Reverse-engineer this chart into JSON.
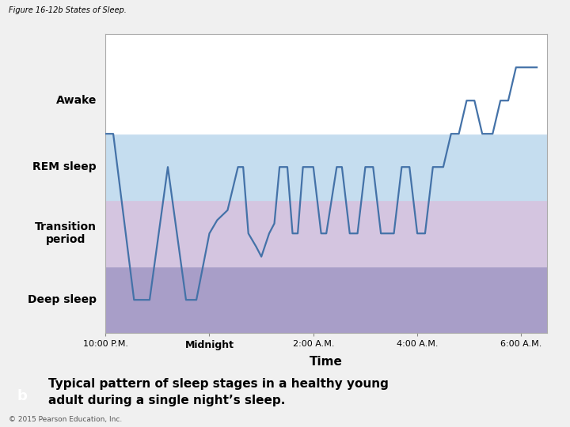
{
  "title": "Figure 16-12b States of Sleep.",
  "xlabel": "Time",
  "xtick_labels": [
    "10:00 P.M.",
    "Midnight",
    "2:00 A.M.",
    "4:00 A.M.",
    "6:00 A.M."
  ],
  "xtick_positions": [
    0,
    2,
    4,
    6,
    8
  ],
  "band_colors": {
    "awake": "#ffffff",
    "rem": "#c5ddef",
    "transition": "#d4c5e0",
    "deep": "#a89ec8"
  },
  "line_color": "#4472a8",
  "line_width": 1.6,
  "background_color": "#f0f0f0",
  "chart_bg": "#ffffff",
  "caption_box_color": "#3a6090",
  "caption_text_line1": "Typical pattern of sleep stages in a healthy young",
  "caption_text_line2": "adult during a single night’s sleep.",
  "copyright": "© 2015 Pearson Education, Inc.",
  "sleep_line": {
    "x": [
      0.0,
      0.15,
      0.55,
      0.85,
      1.2,
      1.55,
      1.75,
      2.0,
      2.15,
      2.35,
      2.55,
      2.65,
      2.75,
      2.9,
      3.0,
      3.15,
      3.25,
      3.35,
      3.5,
      3.6,
      3.7,
      3.8,
      4.0,
      4.15,
      4.25,
      4.45,
      4.55,
      4.7,
      4.85,
      5.0,
      5.15,
      5.3,
      5.55,
      5.7,
      5.85,
      6.0,
      6.15,
      6.3,
      6.5,
      6.65,
      6.8,
      6.95,
      7.1,
      7.25,
      7.45,
      7.6,
      7.75,
      7.9,
      8.0,
      8.3
    ],
    "y": [
      3.0,
      3.0,
      0.5,
      0.5,
      2.5,
      0.5,
      0.5,
      1.5,
      1.7,
      1.85,
      2.5,
      2.5,
      1.5,
      1.3,
      1.15,
      1.5,
      1.65,
      2.5,
      2.5,
      1.5,
      1.5,
      2.5,
      2.5,
      1.5,
      1.5,
      2.5,
      2.5,
      1.5,
      1.5,
      2.5,
      2.5,
      1.5,
      1.5,
      2.5,
      2.5,
      1.5,
      1.5,
      2.5,
      2.5,
      3.0,
      3.0,
      3.5,
      3.5,
      3.0,
      3.0,
      3.5,
      3.5,
      4.0,
      4.0,
      4.0
    ]
  }
}
